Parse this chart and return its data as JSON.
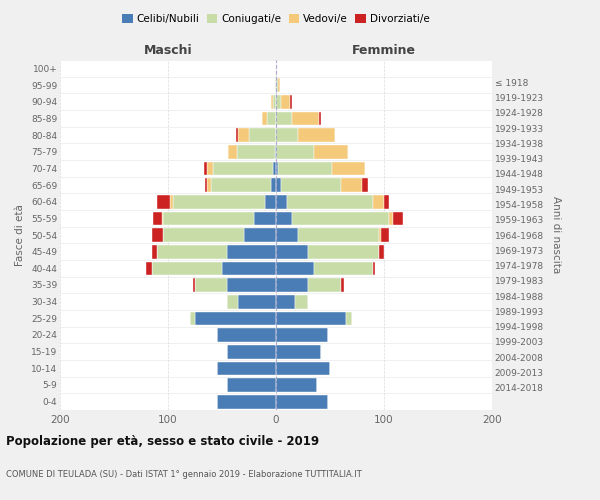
{
  "age_groups": [
    "0-4",
    "5-9",
    "10-14",
    "15-19",
    "20-24",
    "25-29",
    "30-34",
    "35-39",
    "40-44",
    "45-49",
    "50-54",
    "55-59",
    "60-64",
    "65-69",
    "70-74",
    "75-79",
    "80-84",
    "85-89",
    "90-94",
    "95-99",
    "100+"
  ],
  "birth_years": [
    "2014-2018",
    "2009-2013",
    "2004-2008",
    "1999-2003",
    "1994-1998",
    "1989-1993",
    "1984-1988",
    "1979-1983",
    "1974-1978",
    "1969-1973",
    "1964-1968",
    "1959-1963",
    "1954-1958",
    "1949-1953",
    "1944-1948",
    "1939-1943",
    "1934-1938",
    "1929-1933",
    "1924-1928",
    "1919-1923",
    "≤ 1918"
  ],
  "males": {
    "celibi": [
      55,
      45,
      55,
      45,
      55,
      75,
      35,
      45,
      50,
      45,
      30,
      20,
      10,
      5,
      3,
      1,
      0,
      0,
      0,
      0,
      0
    ],
    "coniugati": [
      0,
      0,
      0,
      0,
      0,
      5,
      10,
      30,
      65,
      65,
      75,
      85,
      85,
      55,
      55,
      35,
      25,
      8,
      3,
      1,
      0
    ],
    "vedovi": [
      0,
      0,
      0,
      0,
      0,
      0,
      0,
      0,
      0,
      0,
      0,
      1,
      3,
      4,
      6,
      8,
      10,
      5,
      2,
      0,
      0
    ],
    "divorziati": [
      0,
      0,
      0,
      0,
      0,
      0,
      0,
      2,
      5,
      5,
      10,
      8,
      12,
      2,
      3,
      0,
      2,
      0,
      0,
      0,
      0
    ]
  },
  "females": {
    "nubili": [
      48,
      38,
      50,
      42,
      48,
      65,
      18,
      30,
      35,
      30,
      20,
      15,
      10,
      5,
      2,
      0,
      0,
      0,
      0,
      0,
      0
    ],
    "coniugate": [
      0,
      0,
      0,
      0,
      0,
      5,
      12,
      30,
      55,
      65,
      75,
      90,
      80,
      55,
      50,
      35,
      20,
      15,
      5,
      2,
      0
    ],
    "vedove": [
      0,
      0,
      0,
      0,
      0,
      0,
      0,
      0,
      0,
      0,
      2,
      3,
      10,
      20,
      30,
      32,
      35,
      25,
      8,
      2,
      0
    ],
    "divorziate": [
      0,
      0,
      0,
      0,
      0,
      0,
      0,
      3,
      2,
      5,
      8,
      10,
      5,
      5,
      0,
      0,
      0,
      2,
      2,
      0,
      0
    ]
  },
  "colors": {
    "celibi_nubili": "#4a7db5",
    "coniugati": "#c8dca8",
    "vedovi": "#f5c97a",
    "divorziati": "#cc2222"
  },
  "title": "Popolazione per età, sesso e stato civile - 2019",
  "subtitle": "COMUNE DI TEULADA (SU) - Dati ISTAT 1° gennaio 2019 - Elaborazione TUTTITALIA.IT",
  "xlabel_left": "Maschi",
  "xlabel_right": "Femmine",
  "ylabel_left": "Fasce di età",
  "ylabel_right": "Anni di nascita",
  "xlim": 200,
  "bg_color": "#f0f0f0",
  "plot_bg_color": "#ffffff",
  "legend_labels": [
    "Celibi/Nubili",
    "Coniugati/e",
    "Vedovi/e",
    "Divorziati/e"
  ],
  "gridline_color": "#cccccc"
}
